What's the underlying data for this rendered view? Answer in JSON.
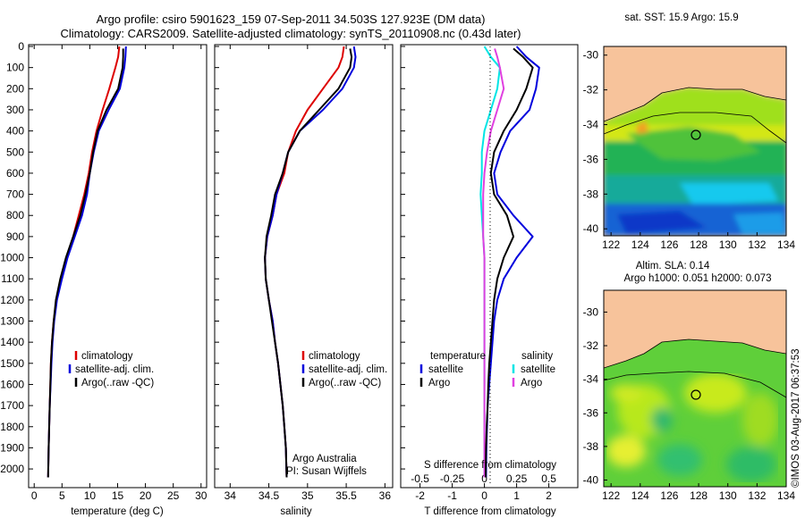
{
  "header": {
    "line1": "Argo profile: csiro 5901623_159 07-Sep-2011 34.503S 127.923E (DM data)",
    "line2": "Climatology: CARS2009. Satellite-adjusted climatology: synTS_20110908.nc (0.43d later)"
  },
  "side_stamp": "©IMOS 03-Aug-2017 06:37:53",
  "colors": {
    "climatology": "#dd0000",
    "satellite": "#0000dd",
    "argo": "#000000",
    "sat_salinity": "#00e5e5",
    "argo_salinity": "#e040e0",
    "land": "#f7c39b"
  },
  "depth_ticks": [
    "0",
    "100",
    "200",
    "300",
    "400",
    "500",
    "600",
    "700",
    "800",
    "900",
    "1000",
    "1100",
    "1200",
    "1300",
    "1400",
    "1500",
    "1600",
    "1700",
    "1800",
    "1900",
    "2000"
  ],
  "panels": {
    "temperature": {
      "xlabel": "temperature (deg C)",
      "xticks": [
        "0",
        "5",
        "10",
        "15",
        "20",
        "25",
        "30"
      ],
      "legend": [
        "climatology",
        "satellite-adj. clim.",
        "Argo(..raw -QC)"
      ]
    },
    "salinity": {
      "xlabel": "salinity",
      "xticks": [
        "34",
        "34.5",
        "35",
        "35.5",
        "36"
      ],
      "legend": [
        "climatology",
        "satellite-adj. clim.",
        "Argo(..raw -QC)"
      ],
      "note1": "Argo Australia",
      "note2": "PI: Susan Wijffels"
    },
    "difference": {
      "xlabel": "T difference from climatology",
      "top_label": "S difference from climatology",
      "xticks_T": [
        "-2",
        "-1",
        "0",
        "1",
        "2"
      ],
      "xticks_S": [
        "-0.5",
        "-0.25",
        "0",
        "0.25",
        "0.5"
      ],
      "legend_temp_title": "temperature",
      "legend_sal_title": "salinity",
      "legend_temp": [
        "satellite",
        "Argo"
      ],
      "legend_sal": [
        "satellite",
        "Argo"
      ]
    }
  },
  "maps": {
    "sst_title": "sat. SST: 15.9  Argo: 15.9",
    "sla_title1": "Altim. SLA: 0.14",
    "sla_title2": "Argo h1000: 0.051 h2000: 0.073",
    "lat_ticks": [
      "-30",
      "-32",
      "-34",
      "-36",
      "-38",
      "-40"
    ],
    "lon_ticks": [
      "122",
      "124",
      "126",
      "128",
      "130",
      "132",
      "134"
    ],
    "float_position": {
      "lon": 127.923,
      "lat": -34.503
    }
  },
  "chart_data": [
    {
      "type": "line",
      "title": "",
      "xlabel": "temperature (deg C)",
      "ylabel": "",
      "xlim": [
        -1,
        31
      ],
      "ylim": [
        2080,
        0
      ],
      "series": [
        {
          "name": "climatology",
          "x": [
            15.3,
            15.1,
            14.6,
            13.5,
            12.3,
            11.2,
            10.4,
            9.8,
            9.0,
            8.0,
            7.0,
            5.8,
            4.8,
            4.0,
            3.5,
            3.2,
            3.0,
            2.9,
            2.8,
            2.7,
            2.6,
            2.5
          ],
          "y": [
            0,
            50,
            100,
            200,
            300,
            400,
            500,
            600,
            700,
            800,
            900,
            1000,
            1100,
            1200,
            1300,
            1400,
            1500,
            1600,
            1700,
            1800,
            1900,
            2040
          ]
        },
        {
          "name": "satellite-adj. clim.",
          "x": [
            16.5,
            16.4,
            16.2,
            15.4,
            13.4,
            11.6,
            10.7,
            10.0,
            9.5,
            8.6,
            7.3,
            6.0,
            5.0,
            4.1,
            3.6,
            3.3,
            3.1,
            2.95,
            2.8,
            2.7,
            2.6,
            2.5
          ],
          "y": [
            0,
            50,
            100,
            200,
            300,
            400,
            500,
            600,
            700,
            800,
            900,
            1000,
            1100,
            1200,
            1300,
            1400,
            1500,
            1600,
            1700,
            1800,
            1900,
            2040
          ]
        },
        {
          "name": "Argo(..raw -QC)",
          "x": [
            16.0,
            16.0,
            15.9,
            15.1,
            13.0,
            11.4,
            10.6,
            10.0,
            9.2,
            8.3,
            7.0,
            5.7,
            4.7,
            3.9,
            3.5,
            3.2,
            3.0,
            2.9,
            2.8,
            2.7,
            2.6,
            2.5
          ],
          "y": [
            10,
            50,
            100,
            200,
            300,
            400,
            500,
            600,
            700,
            800,
            900,
            1000,
            1100,
            1200,
            1300,
            1400,
            1500,
            1600,
            1700,
            1800,
            1900,
            2040
          ]
        }
      ]
    },
    {
      "type": "line",
      "title": "",
      "xlabel": "salinity",
      "ylabel": "",
      "xlim": [
        33.8,
        36.1
      ],
      "ylim": [
        2080,
        0
      ],
      "series": [
        {
          "name": "climatology",
          "x": [
            35.47,
            35.45,
            35.4,
            35.2,
            35.0,
            34.85,
            34.75,
            34.7,
            34.6,
            34.55,
            34.48,
            34.45,
            34.46,
            34.5,
            34.55,
            34.58,
            34.62,
            34.65,
            34.68,
            34.7,
            34.72,
            34.73
          ],
          "y": [
            0,
            50,
            100,
            200,
            300,
            400,
            500,
            600,
            700,
            800,
            900,
            1000,
            1100,
            1200,
            1300,
            1400,
            1500,
            1600,
            1700,
            1800,
            1900,
            2040
          ]
        },
        {
          "name": "satellite-adj. clim.",
          "x": [
            35.6,
            35.62,
            35.6,
            35.45,
            35.2,
            34.9,
            34.75,
            34.68,
            34.6,
            34.55,
            34.48,
            34.45,
            34.46,
            34.5,
            34.55,
            34.58,
            34.62,
            34.65,
            34.68,
            34.7,
            34.72,
            34.73
          ],
          "y": [
            0,
            50,
            100,
            200,
            300,
            400,
            500,
            600,
            700,
            800,
            900,
            1000,
            1100,
            1200,
            1300,
            1400,
            1500,
            1600,
            1700,
            1800,
            1900,
            2040
          ]
        },
        {
          "name": "Argo(..raw -QC)",
          "x": [
            35.55,
            35.57,
            35.55,
            35.4,
            35.15,
            34.9,
            34.75,
            34.68,
            34.58,
            34.53,
            34.47,
            34.45,
            34.46,
            34.5,
            34.54,
            34.58,
            34.62,
            34.65,
            34.68,
            34.7,
            34.72,
            34.73
          ],
          "y": [
            10,
            50,
            100,
            200,
            300,
            400,
            500,
            600,
            700,
            800,
            900,
            1000,
            1100,
            1200,
            1300,
            1400,
            1500,
            1600,
            1700,
            1800,
            1900,
            2040
          ]
        }
      ]
    },
    {
      "type": "line",
      "title": "",
      "xlabel": "T difference from climatology",
      "ylabel": "",
      "xlim": [
        -2.6,
        2.9
      ],
      "ylim": [
        2080,
        0
      ],
      "series": [
        {
          "name": "satellite",
          "x": [
            1.0,
            1.3,
            1.7,
            1.6,
            1.4,
            0.8,
            0.5,
            0.3,
            0.4,
            0.9,
            1.5,
            1.0,
            0.6,
            0.4,
            0.3,
            0.25,
            0.2,
            0.15,
            0.1,
            0.08,
            0.06,
            0.05
          ],
          "y": [
            0,
            50,
            100,
            200,
            300,
            400,
            500,
            600,
            700,
            800,
            900,
            1000,
            1100,
            1200,
            1300,
            1400,
            1500,
            1600,
            1700,
            1800,
            1900,
            2040
          ]
        },
        {
          "name": "Argo",
          "x": [
            0.9,
            1.2,
            1.5,
            1.3,
            1.0,
            0.6,
            0.3,
            0.2,
            0.3,
            0.7,
            0.9,
            0.6,
            0.4,
            0.3,
            0.25,
            0.2,
            0.15,
            0.12,
            0.1,
            0.07,
            0.05,
            0.04
          ],
          "y": [
            10,
            50,
            100,
            200,
            300,
            400,
            500,
            600,
            700,
            800,
            900,
            1000,
            1100,
            1200,
            1300,
            1400,
            1500,
            1600,
            1700,
            1800,
            1900,
            2040
          ]
        }
      ]
    },
    {
      "type": "line",
      "title": "",
      "xlabel": "S difference from climatology",
      "ylabel": "",
      "xlim": [
        -0.65,
        0.725
      ],
      "ylim": [
        2080,
        0
      ],
      "series": [
        {
          "name": "satellite",
          "x": [
            0.0,
            0.05,
            0.12,
            0.1,
            0.05,
            0.0,
            -0.02,
            -0.02,
            -0.03,
            -0.02,
            -0.01,
            0.0,
            0.0,
            0.0,
            0.0,
            0.0,
            0.0,
            0.0,
            0.0,
            0.0,
            0.0,
            0.0
          ],
          "y": [
            0,
            50,
            100,
            200,
            300,
            400,
            500,
            600,
            700,
            800,
            900,
            1000,
            1100,
            1200,
            1300,
            1400,
            1500,
            1600,
            1700,
            1800,
            1900,
            2040
          ]
        },
        {
          "name": "Argo",
          "x": [
            0.08,
            0.1,
            0.12,
            0.15,
            0.1,
            0.05,
            0.02,
            0.0,
            -0.01,
            -0.01,
            -0.01,
            0.0,
            0.0,
            0.0,
            0.0,
            0.0,
            0.0,
            0.0,
            0.0,
            0.0,
            0.0,
            0.0
          ],
          "y": [
            10,
            50,
            100,
            200,
            300,
            400,
            500,
            600,
            700,
            800,
            900,
            1000,
            1100,
            1200,
            1300,
            1400,
            1500,
            1600,
            1700,
            1800,
            1900,
            2040
          ]
        }
      ]
    }
  ]
}
